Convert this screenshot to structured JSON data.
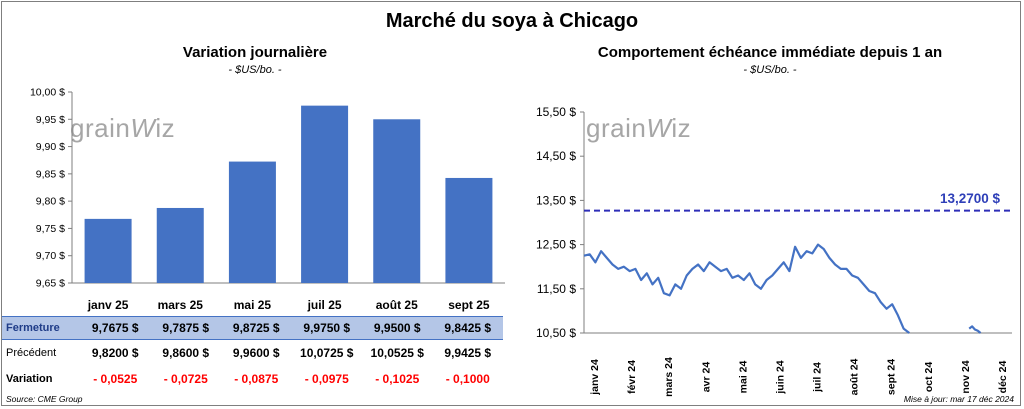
{
  "title": "Marché du soya à Chicago",
  "left": {
    "title": "Variation journalière",
    "unit": "- $US/bo. -",
    "logo": "grainwiz",
    "chart_data": {
      "type": "bar",
      "categories": [
        "janv 25",
        "mars 25",
        "mai 25",
        "juil 25",
        "août 25",
        "sept 25"
      ],
      "values": [
        9.7675,
        9.7875,
        9.8725,
        9.975,
        9.95,
        9.8425
      ],
      "ylim": [
        9.65,
        10.0
      ],
      "yticks": [
        "10,00 $",
        "9,95 $",
        "9,90 $",
        "9,85 $",
        "9,80 $",
        "9,75 $",
        "9,70 $",
        "9,65 $"
      ],
      "bar_color": "#4472c4"
    },
    "table": {
      "rows": [
        {
          "label": "Fermeture",
          "cells": [
            "9,7675  $",
            "9,7875  $",
            "9,8725  $",
            "9,9750  $",
            "9,9500  $",
            "9,8425  $"
          ]
        },
        {
          "label": "Précédent",
          "cells": [
            "9,8200  $",
            "9,8600  $",
            "9,9600  $",
            "10,0725  $",
            "10,0525  $",
            "9,9425  $"
          ]
        },
        {
          "label": "Variation",
          "cells": [
            "- 0,0525",
            "- 0,0725",
            "- 0,0875",
            "- 0,0975",
            "- 0,1025",
            "- 0,1000"
          ]
        }
      ]
    }
  },
  "right": {
    "title": "Comportement  échéance immédiate depuis 1 an",
    "unit": "- $US/bo. -",
    "logo": "grainwiz",
    "chart_data": {
      "type": "line",
      "ylim": [
        10.5,
        15.5
      ],
      "yticks": [
        "15,50 $",
        "14,50 $",
        "13,50 $",
        "12,50 $",
        "11,50 $",
        "10,50 $"
      ],
      "xticks": [
        "janv 24",
        "févr 24",
        "mars 24",
        "avr 24",
        "mai 24",
        "juin 24",
        "juil 24",
        "août 24",
        "sept 24",
        "oct 24",
        "nov 24",
        "déc 24"
      ],
      "reference_value": 13.27,
      "reference_label": "13,2700 $",
      "line_color": "#4472c4",
      "ref_color": "#2e2eb8",
      "series": [
        {
          "values": [
            [
              0,
              12.25
            ],
            [
              2,
              12.28
            ],
            [
              4,
              12.1
            ],
            [
              6,
              12.35
            ],
            [
              8,
              12.2
            ],
            [
              10,
              12.05
            ],
            [
              12,
              11.95
            ],
            [
              14,
              12.0
            ],
            [
              16,
              11.9
            ],
            [
              18,
              11.95
            ],
            [
              20,
              11.7
            ],
            [
              22,
              11.85
            ],
            [
              24,
              11.6
            ],
            [
              26,
              11.75
            ],
            [
              28,
              11.4
            ],
            [
              30,
              11.35
            ],
            [
              32,
              11.6
            ],
            [
              34,
              11.5
            ],
            [
              36,
              11.8
            ],
            [
              38,
              11.95
            ],
            [
              40,
              12.05
            ],
            [
              42,
              11.9
            ],
            [
              44,
              12.1
            ],
            [
              46,
              12.0
            ],
            [
              48,
              11.9
            ],
            [
              50,
              11.95
            ],
            [
              52,
              11.75
            ],
            [
              54,
              11.8
            ],
            [
              56,
              11.7
            ],
            [
              58,
              11.85
            ],
            [
              60,
              11.6
            ],
            [
              62,
              11.5
            ],
            [
              64,
              11.7
            ],
            [
              66,
              11.8
            ],
            [
              68,
              11.95
            ],
            [
              70,
              12.1
            ],
            [
              72,
              11.9
            ],
            [
              74,
              12.45
            ],
            [
              76,
              12.2
            ],
            [
              78,
              12.35
            ],
            [
              80,
              12.3
            ],
            [
              82,
              12.5
            ],
            [
              84,
              12.4
            ],
            [
              86,
              12.2
            ],
            [
              88,
              12.05
            ],
            [
              90,
              11.95
            ],
            [
              92,
              11.95
            ],
            [
              94,
              11.8
            ],
            [
              96,
              11.75
            ],
            [
              98,
              11.6
            ],
            [
              100,
              11.45
            ],
            [
              102,
              11.4
            ],
            [
              104,
              11.2
            ],
            [
              106,
              11.05
            ],
            [
              108,
              11.15
            ],
            [
              110,
              10.9
            ],
            [
              112,
              10.6
            ],
            [
              114,
              10.5
            ]
          ]
        },
        {
          "values": [
            [
              135,
              10.6
            ],
            [
              136,
              10.65
            ],
            [
              137,
              10.58
            ],
            [
              138,
              10.55
            ],
            [
              139,
              10.5
            ]
          ]
        }
      ]
    }
  },
  "footer": {
    "source": "Source: CME Group",
    "updated": "Mise à jour: mar 17 déc 2024"
  }
}
